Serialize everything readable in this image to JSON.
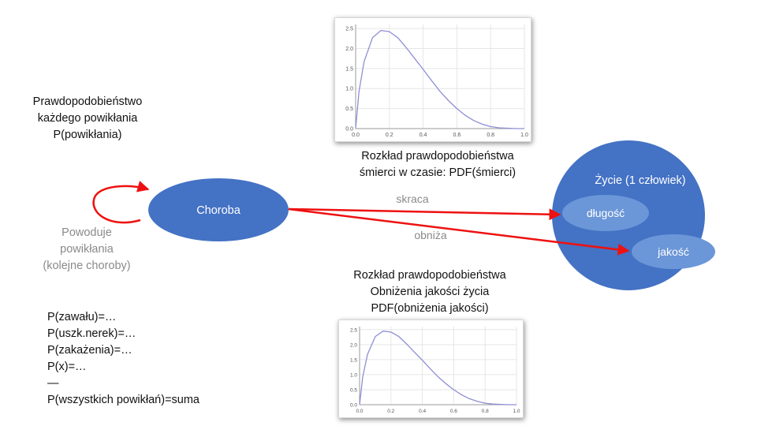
{
  "probability_block": {
    "lines": [
      "Prawdopodobieństwo",
      "każdego powikłania",
      "P(powikłania)"
    ]
  },
  "causes_block": {
    "lines": [
      "Powoduje",
      "powikłania",
      "(kolejne choroby)"
    ]
  },
  "disease_node": {
    "label": "Choroba"
  },
  "life_node": {
    "title": "Życie (1 człowiek)",
    "length_label": "długość",
    "quality_label": "jakość"
  },
  "edges": {
    "shortens_label": "skraca",
    "lowers_label": "obniża"
  },
  "death_chart_caption": {
    "lines": [
      "Rozkład prawdopodobieństwa",
      "śmierci w czasie: PDF(śmierci)"
    ]
  },
  "quality_chart_caption": {
    "lines": [
      "Rozkład prawdopodobieństwa",
      "Obniżenia jakości życia",
      "PDF(obniżenia jakości)"
    ]
  },
  "formula_list": {
    "lines": [
      "P(zawału)=…",
      "P(uszk.nerek)=…",
      "P(zakażenia)=…",
      "P(x)=…",
      "—",
      "P(wszystkich powikłań)=suma"
    ]
  },
  "colors": {
    "node_fill": "#4472c4",
    "node_light": "#6b96d8",
    "arrow": "#ee1111",
    "curve": "#8e8ed6"
  },
  "chart_data": [
    {
      "type": "line",
      "title": "",
      "xlabel": "",
      "ylabel": "",
      "x_ticks": [
        "0.0",
        "0.2",
        "0.4",
        "0.6",
        "0.8",
        "1.0"
      ],
      "y_ticks": [
        "0.0",
        "0.5",
        "1.0",
        "1.5",
        "2.0",
        "2.5"
      ],
      "xlim": [
        0,
        1
      ],
      "ylim": [
        0,
        2.6
      ],
      "grid": true,
      "series": [
        {
          "x": [
            0,
            0.02,
            0.05,
            0.1,
            0.15,
            0.2,
            0.25,
            0.3,
            0.35,
            0.4,
            0.45,
            0.5,
            0.55,
            0.6,
            0.65,
            0.7,
            0.75,
            0.8,
            0.85,
            0.9,
            0.95,
            1.0
          ],
          "values": [
            0,
            0.93,
            1.67,
            2.27,
            2.45,
            2.42,
            2.27,
            2.02,
            1.75,
            1.48,
            1.2,
            0.93,
            0.7,
            0.5,
            0.33,
            0.2,
            0.11,
            0.05,
            0.02,
            0.01,
            0.0,
            0.0
          ]
        }
      ]
    },
    {
      "type": "line",
      "title": "",
      "xlabel": "",
      "ylabel": "",
      "x_ticks": [
        "0.0",
        "0.2",
        "0.4",
        "0.6",
        "0.8",
        "1.0"
      ],
      "y_ticks": [
        "0.0",
        "0.5",
        "1.0",
        "1.5",
        "2.0",
        "2.5"
      ],
      "xlim": [
        0,
        1
      ],
      "ylim": [
        0,
        2.6
      ],
      "grid": true,
      "series": [
        {
          "x": [
            0,
            0.02,
            0.05,
            0.1,
            0.15,
            0.2,
            0.25,
            0.3,
            0.35,
            0.4,
            0.45,
            0.5,
            0.55,
            0.6,
            0.65,
            0.7,
            0.75,
            0.8,
            0.85,
            0.9,
            0.95,
            1.0
          ],
          "values": [
            0,
            0.93,
            1.67,
            2.27,
            2.45,
            2.42,
            2.27,
            2.02,
            1.75,
            1.48,
            1.2,
            0.93,
            0.7,
            0.5,
            0.33,
            0.2,
            0.11,
            0.05,
            0.02,
            0.01,
            0.0,
            0.0
          ]
        }
      ]
    }
  ]
}
